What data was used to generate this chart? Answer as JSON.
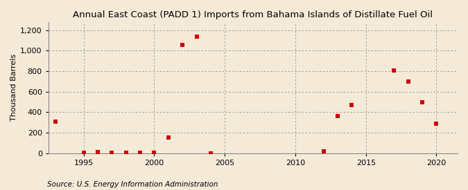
{
  "title": "Annual East Coast (PADD 1) Imports from Bahama Islands of Distillate Fuel Oil",
  "ylabel": "Thousand Barrels",
  "source": "Source: U.S. Energy Information Administration",
  "background_color": "#f5ead8",
  "plot_bg_color": "#f5ead8",
  "marker_color": "#cc0000",
  "years": [
    1993,
    1995,
    1996,
    1997,
    1998,
    1999,
    2000,
    2001,
    2002,
    2003,
    2004,
    2012,
    2013,
    2014,
    2017,
    2018,
    2019,
    2020
  ],
  "values": [
    310,
    5,
    10,
    8,
    5,
    8,
    5,
    155,
    1055,
    1140,
    0,
    20,
    360,
    470,
    810,
    700,
    500,
    290
  ],
  "xlim": [
    1992.5,
    2021.5
  ],
  "ylim": [
    0,
    1280
  ],
  "ylim_display": [
    0,
    1200
  ],
  "yticks": [
    0,
    200,
    400,
    600,
    800,
    1000,
    1200
  ],
  "xticks": [
    1995,
    2000,
    2005,
    2010,
    2015,
    2020
  ],
  "title_fontsize": 9.5,
  "label_fontsize": 8,
  "tick_fontsize": 8,
  "source_fontsize": 7.5
}
